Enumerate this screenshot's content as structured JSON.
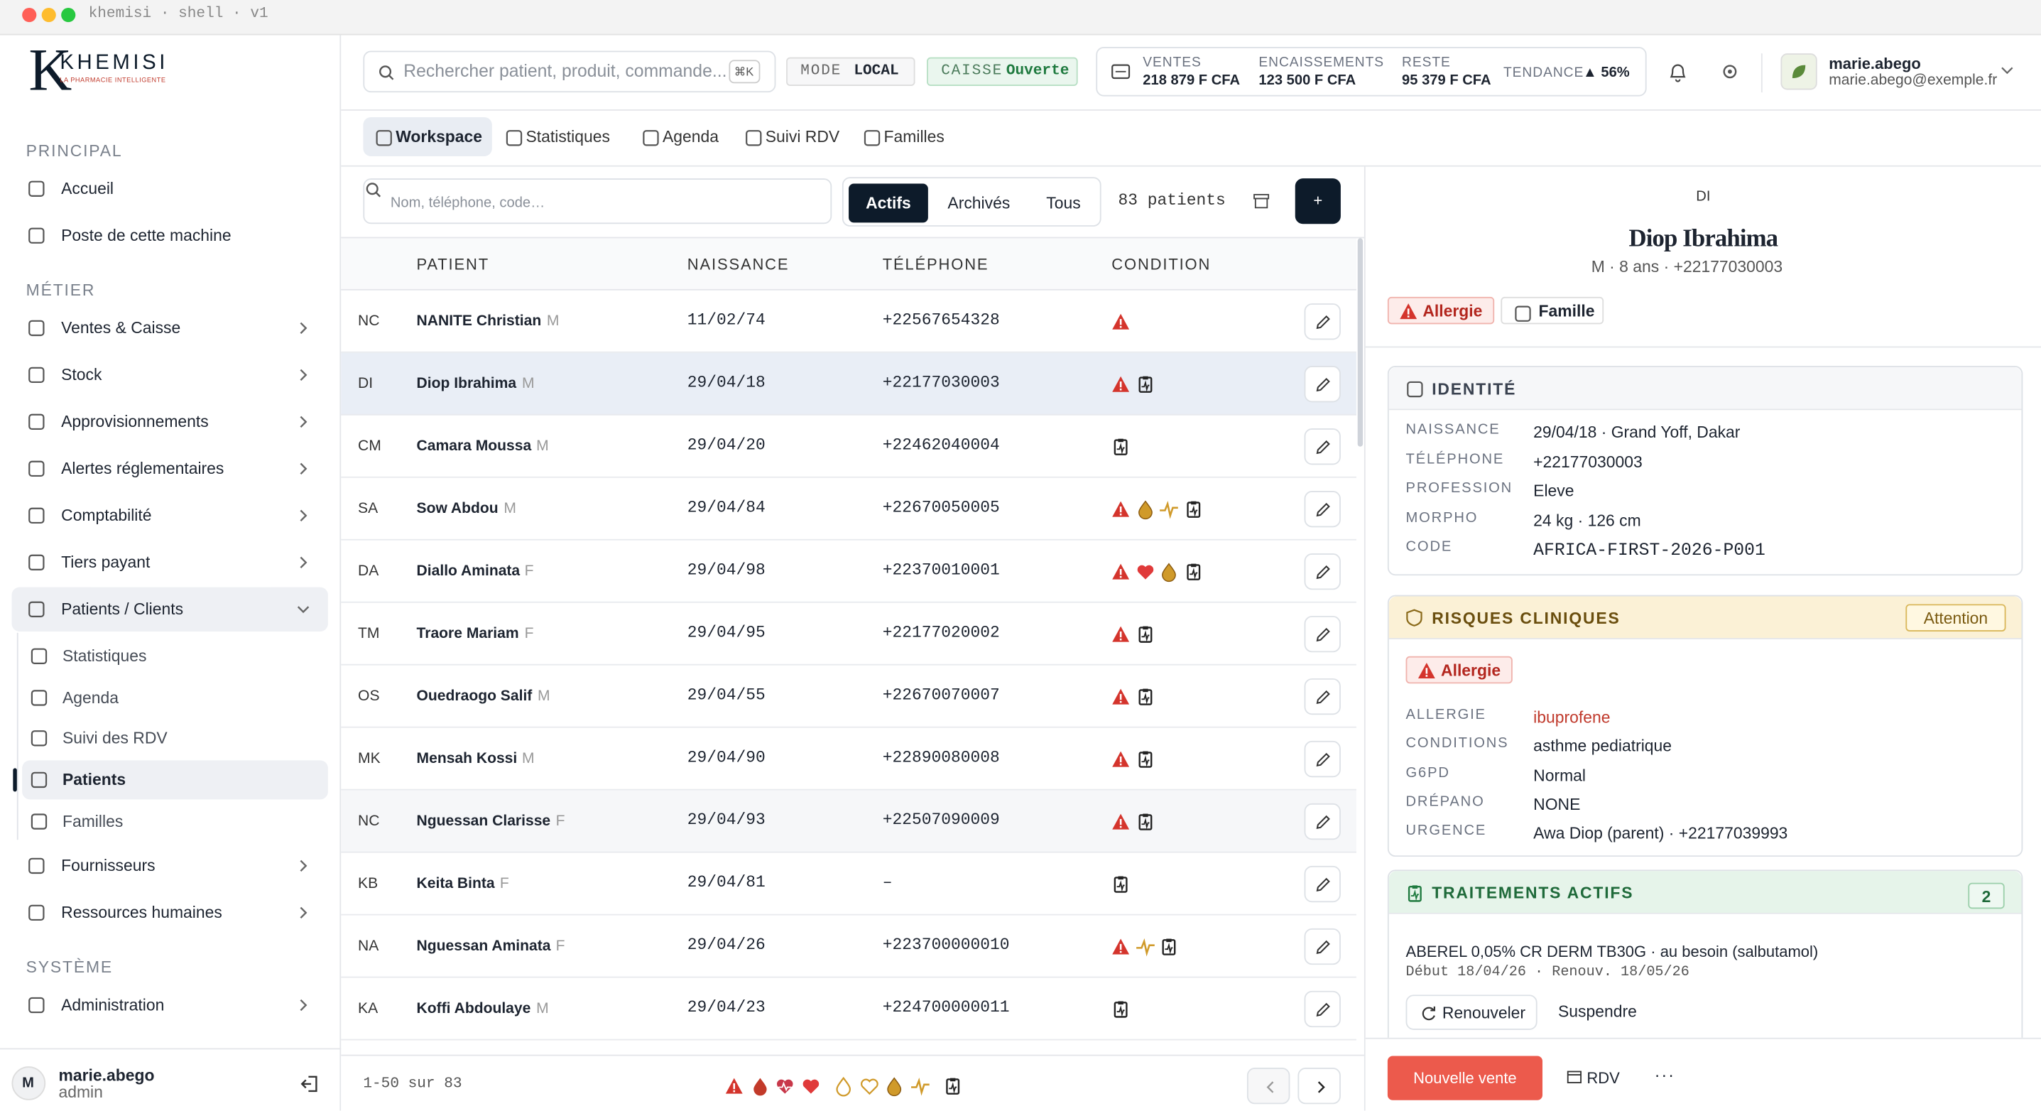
{
  "window": {
    "title": "khemisi · shell · v1"
  },
  "brand": {
    "letter": "K",
    "name": "KHEMISI",
    "tagline": "LA PHARMACIE INTELLIGENTE"
  },
  "sidebar": {
    "sections": [
      {
        "title": "PRINCIPAL",
        "items": [
          {
            "label": "Accueil"
          },
          {
            "label": "Poste de cette machine"
          }
        ]
      },
      {
        "title": "MÉTIER",
        "items": [
          {
            "label": "Ventes & Caisse"
          },
          {
            "label": "Stock"
          },
          {
            "label": "Approvisionnements"
          },
          {
            "label": "Alertes réglementaires"
          },
          {
            "label": "Comptabilité"
          },
          {
            "label": "Tiers payant"
          },
          {
            "label": "Patients / Clients",
            "children": [
              "Statistiques",
              "Agenda",
              "Suivi des RDV",
              "Patients",
              "Familles"
            ]
          },
          {
            "label": "Fournisseurs"
          },
          {
            "label": "Ressources humaines"
          }
        ]
      },
      {
        "title": "SYSTÈME",
        "items": [
          {
            "label": "Administration"
          }
        ]
      }
    ],
    "user": {
      "initial": "M",
      "name": "marie.abego",
      "role": "admin"
    }
  },
  "topbar": {
    "search_placeholder": "Rechercher patient, produit, commande...",
    "shortcut": "⌘K",
    "mode": {
      "label": "MODE",
      "value": "LOCAL"
    },
    "caisse": {
      "label": "CAISSE",
      "value": "Ouverte"
    },
    "stats": [
      {
        "label": "VENTES",
        "value": "218 879 F CFA"
      },
      {
        "label": "ENCAISSEMENTS",
        "value": "123 500 F CFA"
      },
      {
        "label": "RESTE",
        "value": "95 379 F CFA"
      },
      {
        "label": "TENDANCE",
        "value": "▲ 56%"
      }
    ],
    "user": {
      "name": "marie.abego",
      "email": "marie.abego@exemple.fr"
    }
  },
  "tabs": [
    "Workspace",
    "Statistiques",
    "Agenda",
    "Suivi RDV",
    "Familles"
  ],
  "patients": {
    "search_placeholder": "Nom, téléphone, code…",
    "filters": [
      "Actifs",
      "Archivés",
      "Tous"
    ],
    "count": "83 patients",
    "add": "+",
    "columns": [
      "PATIENT",
      "NAISSANCE",
      "TÉLÉPHONE",
      "CONDITION"
    ],
    "rows": [
      {
        "initials": "NC",
        "name": "NANITE Christian",
        "sex": "M",
        "birth": "11/02/74",
        "phone": "+22567654328"
      },
      {
        "initials": "DI",
        "name": "Diop Ibrahima",
        "sex": "M",
        "birth": "29/04/18",
        "phone": "+22177030003"
      },
      {
        "initials": "CM",
        "name": "Camara Moussa",
        "sex": "M",
        "birth": "29/04/20",
        "phone": "+22462040004"
      },
      {
        "initials": "SA",
        "name": "Sow Abdou",
        "sex": "M",
        "birth": "29/04/84",
        "phone": "+22670050005"
      },
      {
        "initials": "DA",
        "name": "Diallo Aminata",
        "sex": "F",
        "birth": "29/04/98",
        "phone": "+22370010001"
      },
      {
        "initials": "TM",
        "name": "Traore Mariam",
        "sex": "F",
        "birth": "29/04/95",
        "phone": "+22177020002"
      },
      {
        "initials": "OS",
        "name": "Ouedraogo Salif",
        "sex": "M",
        "birth": "29/04/55",
        "phone": "+22670070007"
      },
      {
        "initials": "MK",
        "name": "Mensah Kossi",
        "sex": "M",
        "birth": "29/04/90",
        "phone": "+22890080008"
      },
      {
        "initials": "NC",
        "name": "Nguessan Clarisse",
        "sex": "F",
        "birth": "29/04/93",
        "phone": "+22507090009"
      },
      {
        "initials": "KB",
        "name": "Keita Binta",
        "sex": "F",
        "birth": "29/04/81",
        "phone": "–"
      },
      {
        "initials": "NA",
        "name": "Nguessan Aminata",
        "sex": "F",
        "birth": "29/04/26",
        "phone": "+223700000010"
      },
      {
        "initials": "KA",
        "name": "Koffi Abdoulaye",
        "sex": "M",
        "birth": "29/04/23",
        "phone": "+224700000011"
      }
    ],
    "pagination": "1-50 sur 83"
  },
  "detail": {
    "initials": "DI",
    "name": "Diop Ibrahima",
    "subtitle": "M · 8 ans · +22177030003",
    "badges": [
      "Allergie",
      "Famille"
    ],
    "identity": {
      "title": "IDENTITÉ",
      "rows": [
        [
          "NAISSANCE",
          "29/04/18 · Grand Yoff, Dakar"
        ],
        [
          "TÉLÉPHONE",
          "+22177030003"
        ],
        [
          "PROFESSION",
          "Eleve"
        ],
        [
          "MORPHO",
          "24 kg · 126 cm"
        ],
        [
          "CODE",
          "AFRICA-FIRST-2026-P001"
        ]
      ]
    },
    "risks": {
      "title": "RISQUES CLINIQUES",
      "status": "Attention",
      "badge": "Allergie",
      "rows": [
        [
          "ALLERGIE",
          "ibuprofene"
        ],
        [
          "CONDITIONS",
          "asthme pediatrique"
        ],
        [
          "G6PD",
          "Normal"
        ],
        [
          "DRÉPANO",
          "NONE"
        ],
        [
          "URGENCE",
          "Awa Diop (parent) · +22177039993"
        ]
      ]
    },
    "treatments": {
      "title": "TRAITEMENTS ACTIFS",
      "count": "2",
      "items": [
        {
          "name": "ABEREL 0,05% CR DERM TB30G · au besoin (salbutamol)",
          "dates": "Début 18/04/26 · Renouv. 18/05/26",
          "actions": [
            "Renouveler",
            "Suspendre"
          ]
        }
      ]
    }
  },
  "actions": {
    "sale": "Nouvelle vente",
    "rdv": "RDV",
    "more": "···"
  }
}
